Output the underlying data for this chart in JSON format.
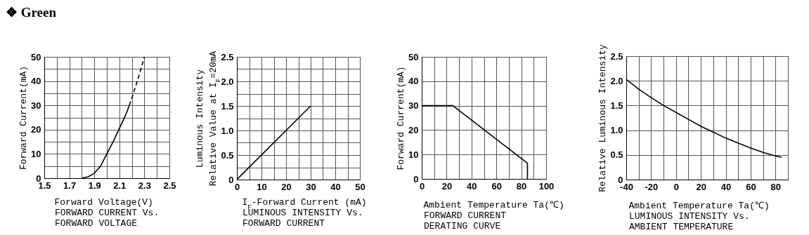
{
  "chart_data": [
    {
      "type": "line",
      "title": "❖ Green",
      "xlabel": "Forward Voltage(V)",
      "ylabel": "Forward Current(mA)",
      "annotations": [
        "FORWARD CURRENT Vs.",
        "FORWARD VOLTAGE"
      ],
      "xlim": [
        1.5,
        2.5
      ],
      "xticks": [
        1.5,
        {
          "value": 1.6,
          "label": null
        },
        1.7,
        {
          "value": 1.8,
          "label": null
        },
        1.9,
        {
          "value": 2.0,
          "label": null
        },
        2.1,
        {
          "value": 2.2,
          "label": null
        },
        2.3,
        {
          "value": 2.4,
          "label": null
        },
        2.5
      ],
      "ylim": [
        0,
        50
      ],
      "yticks": [
        0,
        {
          "value": 5,
          "label": null
        },
        10,
        {
          "value": 15,
          "label": null
        },
        20,
        {
          "value": 25,
          "label": null
        },
        30,
        {
          "value": 35,
          "label": null
        },
        40,
        {
          "value": 45,
          "label": null
        },
        50
      ],
      "grid": true,
      "series": [
        {
          "color": "#000000",
          "line_style": "solid",
          "x": [
            1.8,
            1.85,
            1.9,
            1.95,
            2.0,
            2.05,
            2.1,
            2.15,
            2.18
          ],
          "values": [
            0,
            0.6,
            2,
            5,
            10,
            15,
            20.5,
            26,
            30
          ]
        },
        {
          "color": "#000000",
          "line_style": "dashed",
          "x": [
            2.18,
            2.2,
            2.25,
            2.3
          ],
          "values": [
            30,
            33,
            41,
            50
          ]
        }
      ]
    },
    {
      "type": "line",
      "xlabel": "I$_{F}$-Forward Current (mA)",
      "ylabel": "Luminous Intensity\nRelative Value at I$_{F}$=20mA",
      "annotations": [
        "LUMINOUS INTENSITY Vs.",
        "FORWARD CURRENT"
      ],
      "xlim": [
        0,
        50
      ],
      "xticks": [
        0,
        {
          "value": 5,
          "label": null
        },
        10,
        {
          "value": 15,
          "label": null
        },
        20,
        {
          "value": 25,
          "label": null
        },
        30,
        {
          "value": 35,
          "label": null
        },
        40,
        {
          "value": 45,
          "label": null
        },
        50
      ],
      "ylim": [
        0,
        2.5
      ],
      "yticks": [
        0,
        {
          "value": 0.25,
          "label": null
        },
        0.5,
        {
          "value": 0.75,
          "label": null
        },
        {
          "value": 1,
          "label": "1.0"
        },
        {
          "value": 1.25,
          "label": null
        },
        1.5,
        {
          "value": 1.75,
          "label": null
        },
        {
          "value": 2,
          "label": "2.0"
        },
        {
          "value": 2.25,
          "label": null
        },
        2.5
      ],
      "grid": true,
      "series": [
        {
          "color": "#000000",
          "line_style": "solid",
          "x": [
            0,
            30
          ],
          "values": [
            0,
            1.5
          ]
        }
      ]
    },
    {
      "type": "line",
      "xlabel": "Ambient Temperature Ta(℃)",
      "ylabel": "Forward Current(mA)",
      "annotations": [
        "FORWARD CURRENT",
        "DERATING CURVE"
      ],
      "xlim": [
        0,
        100
      ],
      "xticks": [
        0,
        {
          "value": 10,
          "label": null
        },
        20,
        {
          "value": 30,
          "label": null
        },
        40,
        {
          "value": 50,
          "label": null
        },
        60,
        {
          "value": 70,
          "label": null
        },
        80,
        {
          "value": 90,
          "label": null
        },
        100
      ],
      "ylim": [
        0,
        50
      ],
      "yticks": [
        0,
        10,
        20,
        30,
        40,
        50
      ],
      "grid": true,
      "series": [
        {
          "color": "#000000",
          "line_style": "solid",
          "x": [
            0,
            25,
            85,
            85
          ],
          "values": [
            30,
            30,
            6.4,
            0
          ]
        }
      ]
    },
    {
      "type": "line",
      "xlabel": "Ambient Temperature Ta(℃)",
      "ylabel": "Relative Luminous Intensity",
      "annotations": [
        "LUMINOUS INTENSITY Vs.",
        "AMBIENT TEMPERATURE"
      ],
      "xlim": [
        -40,
        90
      ],
      "xticks": [
        -40,
        {
          "value": -30,
          "label": null
        },
        -20,
        {
          "value": -10,
          "label": null
        },
        0,
        {
          "value": 10,
          "label": null
        },
        20,
        {
          "value": 30,
          "label": null
        },
        40,
        {
          "value": 50,
          "label": null
        },
        60,
        {
          "value": 70,
          "label": null
        },
        80,
        {
          "value": 90,
          "label": null
        }
      ],
      "ylim": [
        0,
        2.5
      ],
      "yticks": [
        0,
        0.5,
        {
          "value": 1,
          "label": "1.0"
        },
        1.5,
        {
          "value": 2,
          "label": "2.0"
        },
        2.5
      ],
      "grid": true,
      "series": [
        {
          "color": "#000000",
          "line_style": "solid",
          "x": [
            -40,
            -30,
            -20,
            -10,
            0,
            10,
            20,
            30,
            40,
            50,
            60,
            70,
            80,
            85
          ],
          "values": [
            2.03,
            1.83,
            1.66,
            1.5,
            1.36,
            1.22,
            1.08,
            0.96,
            0.84,
            0.74,
            0.64,
            0.55,
            0.48,
            0.45
          ]
        }
      ]
    }
  ]
}
